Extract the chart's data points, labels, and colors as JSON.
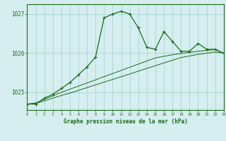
{
  "title": "Graphe pression niveau de la mer (hPa)",
  "bg_color": "#d6eef0",
  "grid_color": "#9ecfcf",
  "line_color": "#1a6b1a",
  "x_values": [
    0,
    1,
    2,
    3,
    4,
    5,
    6,
    7,
    8,
    9,
    10,
    11,
    12,
    13,
    14,
    15,
    16,
    17,
    18,
    19,
    20,
    21,
    22,
    23
  ],
  "line1": [
    1024.7,
    1024.7,
    1024.85,
    1024.95,
    1025.1,
    1025.25,
    1025.45,
    1025.65,
    1025.9,
    1026.9,
    1027.0,
    1027.07,
    1027.0,
    1026.65,
    1026.15,
    1026.1,
    1026.55,
    1026.3,
    1026.05,
    1026.05,
    1026.25,
    1026.1,
    1026.1,
    1026.0
  ],
  "line2": [
    1024.7,
    1024.72,
    1024.78,
    1024.85,
    1024.92,
    1024.98,
    1025.05,
    1025.12,
    1025.19,
    1025.26,
    1025.33,
    1025.4,
    1025.47,
    1025.54,
    1025.61,
    1025.68,
    1025.75,
    1025.82,
    1025.89,
    1025.93,
    1025.97,
    1026.0,
    1026.03,
    1026.0
  ],
  "line3": [
    1024.7,
    1024.73,
    1024.82,
    1024.91,
    1025.0,
    1025.08,
    1025.16,
    1025.24,
    1025.32,
    1025.4,
    1025.48,
    1025.56,
    1025.64,
    1025.72,
    1025.8,
    1025.88,
    1025.92,
    1025.96,
    1025.99,
    1026.02,
    1026.05,
    1026.07,
    1026.09,
    1026.0
  ],
  "ylim": [
    1024.55,
    1027.25
  ],
  "yticks": [
    1025,
    1026,
    1027
  ],
  "xlim": [
    0,
    23
  ],
  "figsize": [
    3.2,
    2.0
  ],
  "dpi": 100
}
